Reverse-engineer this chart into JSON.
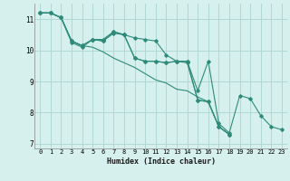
{
  "xlabel": "Humidex (Indice chaleur)",
  "ylabel": "",
  "bg_color": "#d6f0ed",
  "grid_color": "#b0d8d4",
  "line_color": "#2e8b7a",
  "xlim": [
    -0.5,
    23.5
  ],
  "ylim": [
    6.85,
    11.5
  ],
  "yticks": [
    7,
    8,
    9,
    10,
    11
  ],
  "xticks": [
    0,
    1,
    2,
    3,
    4,
    5,
    6,
    7,
    8,
    9,
    10,
    11,
    12,
    13,
    14,
    15,
    16,
    17,
    18,
    19,
    20,
    21,
    22,
    23
  ],
  "series": [
    {
      "x": [
        0,
        1,
        2,
        3,
        4,
        5,
        6,
        7,
        8,
        9,
        10,
        11,
        12,
        13,
        14,
        15,
        16,
        17,
        18
      ],
      "y": [
        11.2,
        11.2,
        11.05,
        10.3,
        10.15,
        10.35,
        10.3,
        10.6,
        10.5,
        9.75,
        9.65,
        9.65,
        9.6,
        9.65,
        9.65,
        8.4,
        8.35,
        7.55,
        7.3
      ],
      "marker": true
    },
    {
      "x": [
        0,
        1,
        2,
        3,
        4,
        5,
        6,
        7,
        8,
        9,
        10,
        11,
        12,
        13,
        14,
        15,
        16,
        17,
        18
      ],
      "y": [
        11.2,
        11.2,
        11.05,
        10.3,
        10.15,
        10.1,
        9.95,
        9.75,
        9.6,
        9.45,
        9.25,
        9.05,
        8.95,
        8.75,
        8.7,
        8.5,
        8.35,
        7.55,
        7.3
      ],
      "marker": false
    },
    {
      "x": [
        0,
        1,
        2,
        3,
        4,
        5,
        6,
        7,
        8,
        9,
        10,
        11,
        12,
        13,
        14,
        15,
        16,
        17,
        18
      ],
      "y": [
        11.2,
        11.2,
        11.05,
        10.3,
        10.15,
        10.35,
        10.3,
        10.55,
        10.5,
        10.4,
        10.35,
        10.3,
        9.85,
        9.65,
        9.6,
        8.4,
        8.35,
        7.55,
        7.3
      ],
      "marker": true
    },
    {
      "x": [
        0,
        1,
        2,
        3,
        4,
        5,
        6,
        7,
        8,
        9,
        10,
        11,
        12,
        13,
        14,
        15,
        16,
        17,
        18,
        19,
        20,
        21,
        22,
        23
      ],
      "y": [
        11.2,
        11.2,
        11.05,
        10.25,
        10.1,
        10.35,
        10.35,
        10.6,
        10.5,
        9.75,
        9.65,
        9.65,
        9.6,
        9.65,
        9.65,
        8.7,
        9.65,
        7.65,
        7.35,
        8.55,
        8.45,
        7.9,
        7.55,
        7.45
      ],
      "marker": true
    }
  ]
}
